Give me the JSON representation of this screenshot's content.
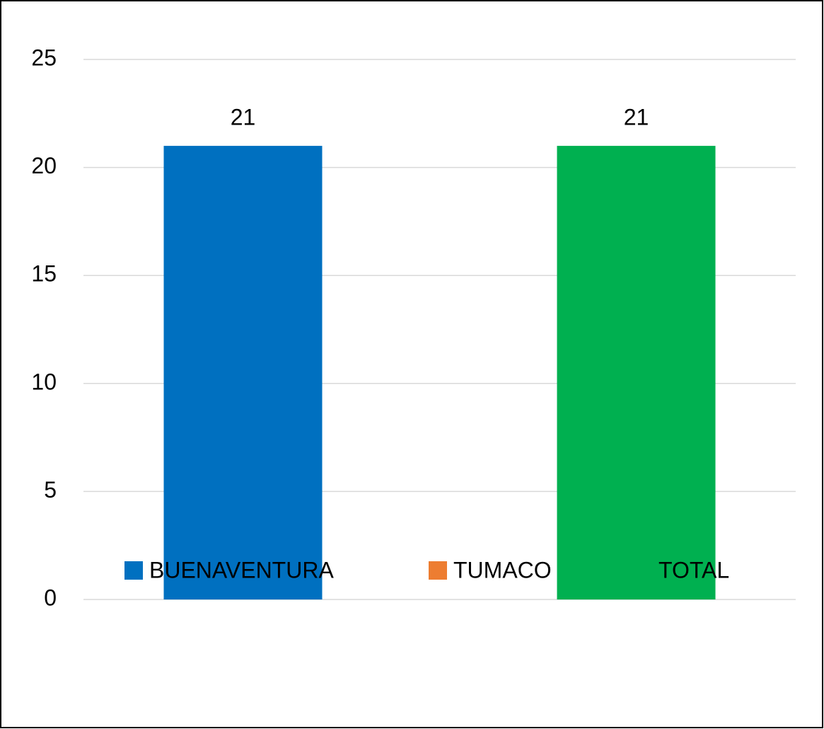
{
  "chart_data": {
    "type": "bar",
    "categories": [
      null
    ],
    "series": [
      {
        "name": "BUENAVENTURA",
        "color": "#0070c0",
        "values": [
          21
        ]
      },
      {
        "name": "TUMACO",
        "color": "#ed7d31",
        "values": [
          0
        ]
      },
      {
        "name": "TOTAL",
        "color": "#00b050",
        "values": [
          21
        ]
      }
    ],
    "ylim": [
      0,
      25
    ],
    "yticks": [
      0,
      5,
      10,
      15,
      20,
      25
    ],
    "grid": true,
    "legend": "bottom"
  }
}
